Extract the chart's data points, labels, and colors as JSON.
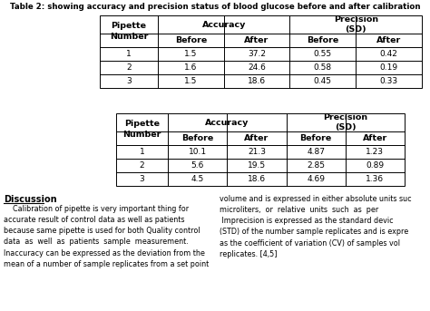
{
  "title": "Table 2: showing accuracy and precision status of blood glucose before and after calibration",
  "table1": {
    "rows": [
      [
        "1",
        "1.5",
        "37.2",
        "0.55",
        "0.42"
      ],
      [
        "2",
        "1.6",
        "24.6",
        "0.58",
        "0.19"
      ],
      [
        "3",
        "1.5",
        "18.6",
        "0.45",
        "0.33"
      ]
    ]
  },
  "table2": {
    "rows": [
      [
        "1",
        "10.1",
        "21.3",
        "4.87",
        "1.23"
      ],
      [
        "2",
        "5.6",
        "19.5",
        "2.85",
        "0.89"
      ],
      [
        "3",
        "4.5",
        "18.6",
        "4.69",
        "1.36"
      ]
    ]
  },
  "discussion_title": "Discussion",
  "discussion_left": "    Calibration of pipette is very important thing for\naccurate result of control data as well as patients\nbecause same pipette is used for both Quality control\ndata  as  well  as  patients  sample  measurement.\nInaccuracy can be expressed as the deviation from the\nmean of a number of sample replicates from a set point",
  "discussion_right": "volume and is expressed in either absolute units suc\nmicroliters,  or  relative  units  such  as  per \n Imprecision is expressed as the standard devic\n(STD) of the number sample replicates and is expre\nas the coefficient of variation (CV) of samples vol\nreplicates. [4,5]",
  "bg_color": "#ffffff",
  "text_color": "#000000",
  "font_size": 6.5,
  "bold_size": 6.8
}
